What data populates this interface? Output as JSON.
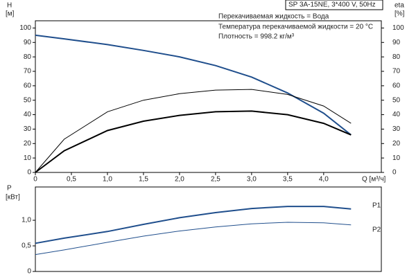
{
  "chart_data": [
    {
      "type": "line",
      "title": "SP 3A-15NE, 3*400 V, 50Hz",
      "annotations": [
        "Перекачиваемая жидкость = Вода",
        "Температура перекачиваемой жидкости = 20 °C",
        "Плотность = 998.2 кг/м³"
      ],
      "ylabel": "H",
      "yunit": "[м]",
      "y2label": "eta",
      "y2unit": "[%]",
      "xlabel": "Q [м³/ч]",
      "x": [
        0,
        0.4,
        1,
        1.5,
        2,
        2.5,
        3,
        3.5,
        4,
        4.38
      ],
      "xlim": [
        0,
        4.8
      ],
      "xticks": [
        0,
        {
          "value": 0.5,
          "label": "0,5"
        },
        {
          "value": 1,
          "label": "1,0"
        },
        {
          "value": 1.5,
          "label": "1,5"
        },
        {
          "value": 2,
          "label": "2,0"
        },
        {
          "value": 2.5,
          "label": "2,5"
        },
        {
          "value": 3,
          "label": "3,0"
        },
        {
          "value": 3.5,
          "label": "3,5"
        },
        {
          "value": 4,
          "label": "4,0"
        }
      ],
      "ylim": [
        0,
        105
      ],
      "yticks": [
        0,
        10,
        20,
        30,
        40,
        50,
        60,
        70,
        80,
        90,
        100
      ],
      "y2lim": [
        0,
        105
      ],
      "y2ticks": [
        0,
        10,
        20,
        30,
        40,
        50,
        60,
        70,
        80,
        90,
        100
      ],
      "series": [
        {
          "color": "#1f4e8c",
          "width": 2,
          "values": [
            95,
            92.5,
            88.5,
            84.5,
            80,
            74,
            66,
            55,
            41,
            26
          ]
        },
        {
          "color": "#000000",
          "width": 1,
          "axis": "y2",
          "values": [
            0,
            23,
            42,
            50,
            54.5,
            57,
            57.5,
            54,
            46,
            34
          ]
        },
        {
          "color": "#000000",
          "width": 2,
          "axis": "y2",
          "values": [
            0,
            15,
            29,
            35.5,
            39.5,
            42,
            42.5,
            40,
            34,
            26
          ]
        }
      ]
    },
    {
      "type": "line",
      "ylabel": "P",
      "yunit": "[кВт]",
      "x": [
        0,
        0.4,
        1,
        1.5,
        2,
        2.5,
        3,
        3.5,
        4,
        4.38
      ],
      "xlim": [
        0,
        4.8
      ],
      "ylim": [
        0,
        1.65
      ],
      "yticks": [
        0,
        {
          "value": 0.5,
          "label": "0,5"
        },
        {
          "value": 1,
          "label": "1,0"
        }
      ],
      "series": [
        {
          "name": "P1",
          "color": "#1f4e8c",
          "width": 2,
          "values": [
            0.55,
            0.65,
            0.78,
            0.92,
            1.05,
            1.15,
            1.23,
            1.27,
            1.27,
            1.22
          ]
        },
        {
          "name": "P2",
          "color": "#1f4e8c",
          "width": 1,
          "values": [
            0.33,
            0.42,
            0.57,
            0.69,
            0.79,
            0.87,
            0.93,
            0.96,
            0.95,
            0.91
          ]
        }
      ]
    }
  ]
}
